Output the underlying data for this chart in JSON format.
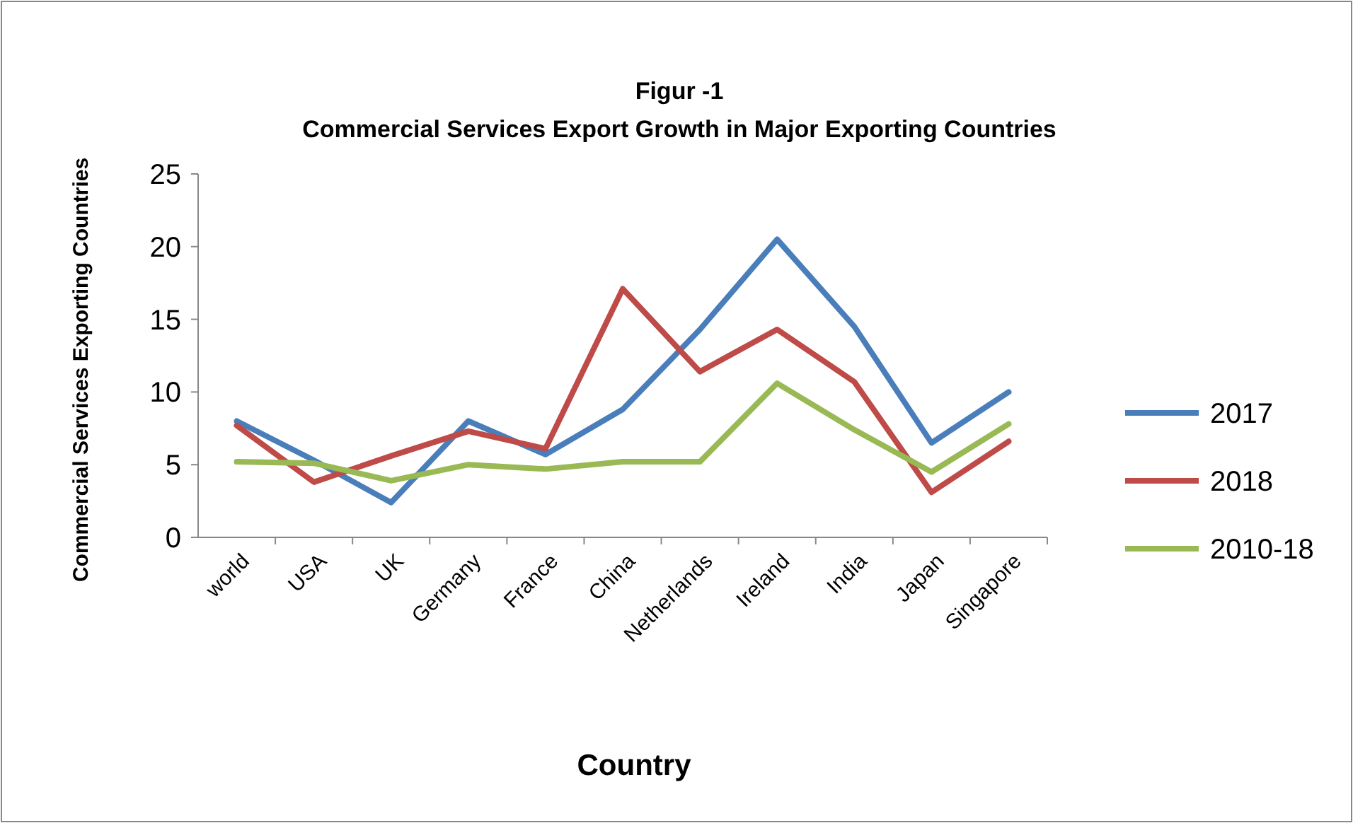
{
  "chart_data": {
    "type": "line",
    "title": "Figur -1",
    "subtitle": "Commercial Services Export Growth in Major Exporting Countries",
    "xlabel": "Country",
    "ylabel": "Commercial Services Exporting Countries",
    "categories": [
      "world",
      "USA",
      "UK",
      "Germany",
      "France",
      "China",
      "Netherlands",
      "Ireland",
      "India",
      "Japan",
      "Singapore"
    ],
    "ylim": [
      0,
      25
    ],
    "yticks": [
      0,
      5,
      10,
      15,
      20,
      25
    ],
    "grid": false,
    "legend": "right",
    "marker": "none",
    "line_style": "solid",
    "series": [
      {
        "name": "2017",
        "color": "#4a7ebb",
        "values": [
          8,
          5.3,
          2.4,
          8,
          5.7,
          8.8,
          14.3,
          20.5,
          14.5,
          6.5,
          10
        ]
      },
      {
        "name": "2018",
        "color": "#be4b48",
        "values": [
          7.7,
          3.8,
          5.6,
          7.3,
          6.1,
          17.1,
          11.4,
          14.3,
          10.7,
          3.1,
          6.6
        ]
      },
      {
        "name": "2010-18",
        "color": "#98b954",
        "values": [
          5.2,
          5.1,
          3.9,
          5.0,
          4.7,
          5.2,
          5.2,
          10.6,
          7.4,
          4.5,
          7.8
        ]
      }
    ]
  }
}
